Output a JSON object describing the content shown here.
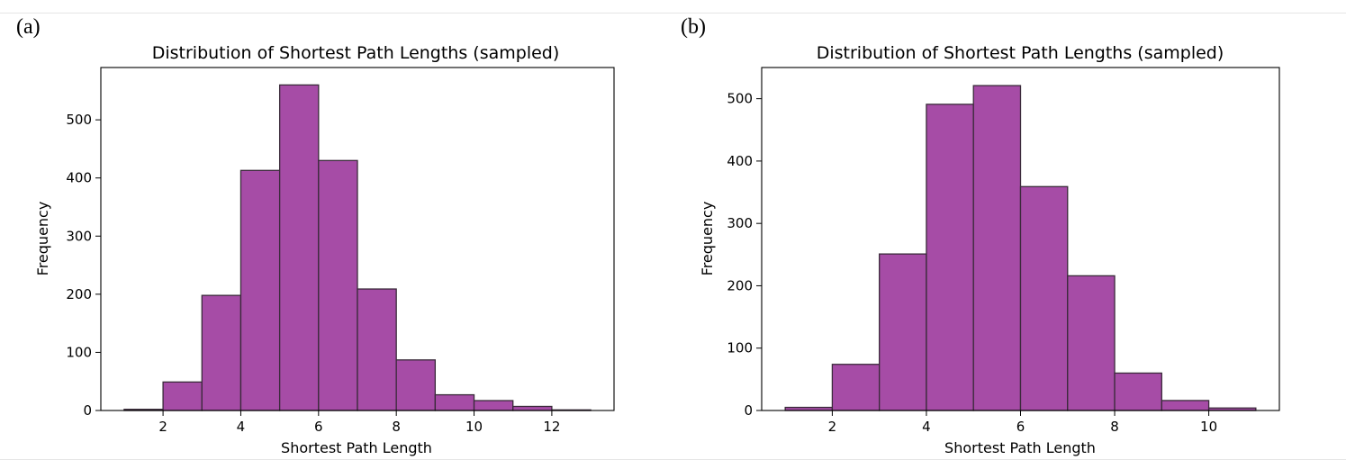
{
  "figure": {
    "panels": [
      "(a)",
      "(b)"
    ]
  },
  "style": {
    "bar_fill": "#a64ca6",
    "bar_edge": "#3a2a3a"
  },
  "chart_data": [
    {
      "panel_label": "(a)",
      "type": "bar",
      "title": "Distribution of Shortest Path Lengths (sampled)",
      "xlabel": "Shortest Path Length",
      "ylabel": "Frequency",
      "xlim": [
        0.4,
        13.6
      ],
      "ylim": [
        0,
        590
      ],
      "xticks": [
        2,
        4,
        6,
        8,
        10,
        12
      ],
      "xtick_labels": [
        "2",
        "4",
        "6",
        "8",
        "10",
        "12"
      ],
      "yticks": [
        0,
        100,
        200,
        300,
        400,
        500
      ],
      "ytick_labels": [
        "0",
        "100",
        "200",
        "300",
        "400",
        "500"
      ],
      "bins": [
        {
          "start": 1,
          "end": 2,
          "count": 2
        },
        {
          "start": 2,
          "end": 3,
          "count": 49
        },
        {
          "start": 3,
          "end": 4,
          "count": 198
        },
        {
          "start": 4,
          "end": 5,
          "count": 413
        },
        {
          "start": 5,
          "end": 6,
          "count": 560
        },
        {
          "start": 6,
          "end": 7,
          "count": 430
        },
        {
          "start": 7,
          "end": 8,
          "count": 209
        },
        {
          "start": 8,
          "end": 9,
          "count": 87
        },
        {
          "start": 9,
          "end": 10,
          "count": 27
        },
        {
          "start": 10,
          "end": 11,
          "count": 17
        },
        {
          "start": 11,
          "end": 12,
          "count": 7
        },
        {
          "start": 12,
          "end": 13,
          "count": 1
        }
      ]
    },
    {
      "panel_label": "(b)",
      "type": "bar",
      "title": "Distribution of Shortest Path Lengths (sampled)",
      "xlabel": "Shortest Path Length",
      "ylabel": "Frequency",
      "xlim": [
        0.5,
        11.5
      ],
      "ylim": [
        0,
        550
      ],
      "xticks": [
        2,
        4,
        6,
        8,
        10
      ],
      "xtick_labels": [
        "2",
        "4",
        "6",
        "8",
        "10"
      ],
      "yticks": [
        0,
        100,
        200,
        300,
        400,
        500
      ],
      "ytick_labels": [
        "0",
        "100",
        "200",
        "300",
        "400",
        "500"
      ],
      "bins": [
        {
          "start": 1,
          "end": 2,
          "count": 5
        },
        {
          "start": 2,
          "end": 3,
          "count": 74
        },
        {
          "start": 3,
          "end": 4,
          "count": 251
        },
        {
          "start": 4,
          "end": 5,
          "count": 491
        },
        {
          "start": 5,
          "end": 6,
          "count": 521
        },
        {
          "start": 6,
          "end": 7,
          "count": 359
        },
        {
          "start": 7,
          "end": 8,
          "count": 216
        },
        {
          "start": 8,
          "end": 9,
          "count": 60
        },
        {
          "start": 9,
          "end": 10,
          "count": 16
        },
        {
          "start": 10,
          "end": 11,
          "count": 4
        }
      ]
    }
  ]
}
